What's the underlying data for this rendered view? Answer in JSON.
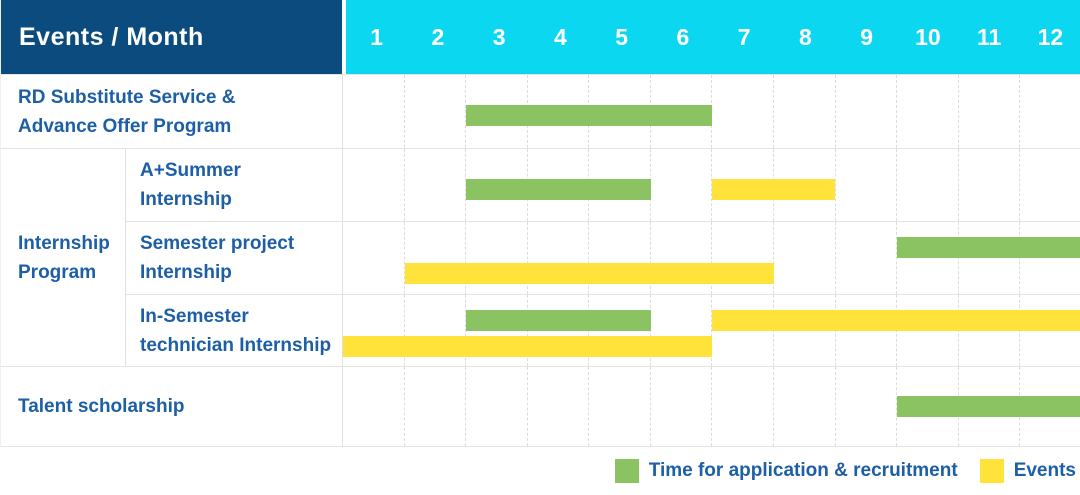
{
  "header": {
    "title": "Events / Month",
    "months": [
      "1",
      "2",
      "3",
      "4",
      "5",
      "6",
      "7",
      "8",
      "9",
      "10",
      "11",
      "12"
    ]
  },
  "group": {
    "label": "Internship\nProgram"
  },
  "rows": [
    {
      "label": "RD Substitute Service &\nAdvance Offer Program",
      "bars": [
        {
          "color": "green",
          "start": 3,
          "end": 6,
          "line": "center"
        }
      ]
    },
    {
      "label": "A+Summer\nInternship",
      "bars": [
        {
          "color": "green",
          "start": 3,
          "end": 5,
          "line": "center"
        },
        {
          "color": "yellow",
          "start": 7,
          "end": 8,
          "line": "center"
        }
      ]
    },
    {
      "label": "Semester project\nInternship",
      "bars": [
        {
          "color": "green",
          "start": 10,
          "end": 12,
          "line": "top"
        },
        {
          "color": "yellow",
          "start": 2,
          "end": 7,
          "line": "bottom"
        }
      ]
    },
    {
      "label": "In-Semester\ntechnician Internship",
      "bars": [
        {
          "color": "green",
          "start": 3,
          "end": 5,
          "line": "top"
        },
        {
          "color": "yellow",
          "start": 7,
          "end": 12,
          "line": "top"
        },
        {
          "color": "yellow",
          "start": 1,
          "end": 6,
          "line": "bottom"
        }
      ]
    },
    {
      "label": "Talent scholarship",
      "bars": [
        {
          "color": "green",
          "start": 10,
          "end": 12,
          "line": "center"
        }
      ]
    }
  ],
  "legend": {
    "items": [
      {
        "color": "green",
        "label": "Time for application & recruitment"
      },
      {
        "color": "yellow",
        "label": "Events"
      }
    ]
  },
  "colors": {
    "header_navy": "#0B4B7D",
    "header_cyan": "#0BD7F0",
    "bar_green": "#8BC262",
    "bar_yellow": "#FFE33B",
    "label_text_blue": "#1D5FA6"
  },
  "chart_data": {
    "type": "gantt",
    "title": "Events / Month",
    "x_axis": {
      "label": "Month",
      "ticks": [
        "1",
        "2",
        "3",
        "4",
        "5",
        "6",
        "7",
        "8",
        "9",
        "10",
        "11",
        "12"
      ],
      "range": [
        1,
        12
      ]
    },
    "categories": [
      "RD Substitute Service & Advance Offer Program",
      "A+Summer Internship",
      "Semester project Internship",
      "In-Semester technician Internship",
      "Talent scholarship"
    ],
    "groups": {
      "Internship Program": [
        "A+Summer Internship",
        "Semester project Internship",
        "In-Semester technician Internship"
      ]
    },
    "series": [
      {
        "name": "Time for application & recruitment",
        "color": "#8BC262",
        "bars": [
          {
            "category": "RD Substitute Service & Advance Offer Program",
            "month_start": 3,
            "month_end": 6
          },
          {
            "category": "A+Summer Internship",
            "month_start": 3,
            "month_end": 5
          },
          {
            "category": "Semester project Internship",
            "month_start": 10,
            "month_end": 12
          },
          {
            "category": "In-Semester technician Internship",
            "month_start": 3,
            "month_end": 5
          },
          {
            "category": "Talent scholarship",
            "month_start": 10,
            "month_end": 12
          }
        ]
      },
      {
        "name": "Events",
        "color": "#FFE33B",
        "bars": [
          {
            "category": "A+Summer Internship",
            "month_start": 7,
            "month_end": 8
          },
          {
            "category": "Semester project Internship",
            "month_start": 2,
            "month_end": 7
          },
          {
            "category": "In-Semester technician Internship",
            "month_start": 1,
            "month_end": 6
          },
          {
            "category": "In-Semester technician Internship",
            "month_start": 7,
            "month_end": 12
          }
        ]
      }
    ],
    "grid": true,
    "legend_position": "bottom-right"
  }
}
